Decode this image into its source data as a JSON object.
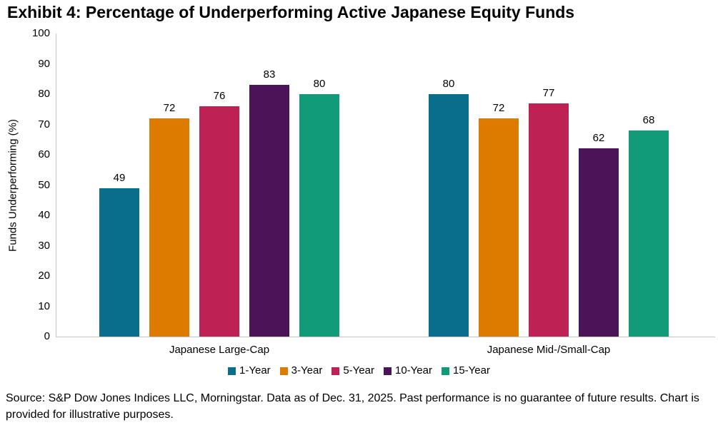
{
  "title": "Exhibit 4: Percentage of Underperforming Active Japanese Equity Funds",
  "source_note": "Source: S&P Dow Jones Indices LLC, Morningstar. Data as of Dec. 31, 2025. Past performance is no guarantee of future results. Chart is provided for illustrative purposes.",
  "chart_data": {
    "type": "bar",
    "title": "Exhibit 4: Percentage of Underperforming Active Japanese Equity Funds",
    "categories": [
      "Japanese Large-Cap",
      "Japanese Mid-/Small-Cap"
    ],
    "series": [
      {
        "name": "1-Year",
        "color": "#086e8c",
        "values": [
          49,
          80
        ]
      },
      {
        "name": "3-Year",
        "color": "#dd7b00",
        "values": [
          72,
          72
        ]
      },
      {
        "name": "5-Year",
        "color": "#be2255",
        "values": [
          76,
          77
        ]
      },
      {
        "name": "10-Year",
        "color": "#4c1458",
        "values": [
          83,
          62
        ]
      },
      {
        "name": "15-Year",
        "color": "#119b79",
        "values": [
          80,
          68
        ]
      }
    ],
    "xlabel": "",
    "ylabel": "Funds Underperforming (%)",
    "ylim": [
      0,
      100
    ],
    "yticks": [
      0,
      10,
      20,
      30,
      40,
      50,
      60,
      70,
      80,
      90,
      100
    ],
    "grid": false,
    "legend_position": "bottom",
    "data_labels": true,
    "axis_line_color": "#c6c6c6"
  }
}
